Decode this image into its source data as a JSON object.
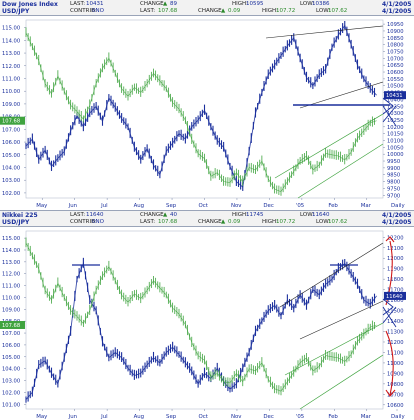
{
  "chart_data": [
    {
      "type": "line",
      "name_ticker": "Dow Jones Index",
      "pair_ticker": "USD/JPY",
      "header": {
        "last_label": "LAST:",
        "last": "10431",
        "change_label": "CHANGE:",
        "change": "89",
        "high_label": "HIGH:",
        "high": "10595",
        "low_label": "LOW:",
        "low": "10386",
        "date": "4/1/2005",
        "contrib_label": "CONTRIB:",
        "contrib": "0NO",
        "last2_label": "LAST:",
        "last2": "107.68",
        "change2_label": "CHANGE:",
        "change2": "0.09",
        "high2_label": "HIGH:",
        "high2": "107.72",
        "low2_label": "LOW:",
        "low2": "107.62",
        "date2": "4/1/2005"
      },
      "left_axis": [
        115.0,
        114.0,
        113.0,
        112.0,
        111.0,
        110.0,
        109.0,
        108.0,
        107.0,
        106.0,
        105.0,
        104.0,
        103.0,
        102.0
      ],
      "left_range": [
        101.6,
        115.6
      ],
      "right_axis": [
        10950,
        10900,
        10850,
        10800,
        10750,
        10700,
        10650,
        10600,
        10550,
        10500,
        10450,
        10400,
        10350,
        10300,
        10250,
        10200,
        10150,
        10100,
        10050,
        10000,
        9950,
        9900,
        9850,
        9800,
        9750,
        9700
      ],
      "right_range": [
        9680,
        10980
      ],
      "x_labels": [
        "May",
        "Jun",
        "Jul",
        "Aug",
        "Sep",
        "Oct",
        "Nov",
        "Dec",
        "'05",
        "Feb",
        "Mar",
        "Daily"
      ],
      "price_marker_left": "107.68",
      "price_marker_right": "10431",
      "series": [
        {
          "name": "Dow Jones Index",
          "color": "#1a2f9c",
          "axis": "right",
          "points": [
            [
              0,
              10060
            ],
            [
              3,
              10110
            ],
            [
              6,
              9960
            ],
            [
              9,
              10030
            ],
            [
              12,
              9910
            ],
            [
              15,
              9970
            ],
            [
              18,
              10020
            ],
            [
              21,
              10170
            ],
            [
              24,
              10280
            ],
            [
              27,
              10200
            ],
            [
              30,
              10300
            ],
            [
              33,
              10350
            ],
            [
              36,
              10240
            ],
            [
              39,
              10410
            ],
            [
              42,
              10340
            ],
            [
              45,
              10260
            ],
            [
              48,
              10200
            ],
            [
              51,
              10050
            ],
            [
              54,
              9960
            ],
            [
              57,
              10040
            ],
            [
              60,
              9920
            ],
            [
              63,
              9850
            ],
            [
              66,
              10020
            ],
            [
              69,
              10080
            ],
            [
              72,
              10150
            ],
            [
              75,
              10110
            ],
            [
              78,
              10200
            ],
            [
              81,
              10250
            ],
            [
              84,
              10320
            ],
            [
              87,
              10200
            ],
            [
              90,
              10100
            ],
            [
              93,
              10050
            ],
            [
              96,
              9910
            ],
            [
              99,
              9800
            ],
            [
              102,
              9760
            ],
            [
              105,
              10020
            ],
            [
              108,
              10300
            ],
            [
              111,
              10450
            ],
            [
              114,
              10580
            ],
            [
              117,
              10650
            ],
            [
              120,
              10720
            ],
            [
              123,
              10790
            ],
            [
              126,
              10850
            ],
            [
              129,
              10700
            ],
            [
              132,
              10560
            ],
            [
              135,
              10500
            ],
            [
              138,
              10580
            ],
            [
              141,
              10620
            ],
            [
              144,
              10780
            ],
            [
              147,
              10870
            ],
            [
              150,
              10940
            ],
            [
              153,
              10800
            ],
            [
              156,
              10650
            ],
            [
              159,
              10550
            ],
            [
              162,
              10480
            ],
            [
              165,
              10431
            ]
          ]
        },
        {
          "name": "USD/JPY",
          "color": "#3fa33f",
          "axis": "left",
          "points": [
            [
              0,
              114.6
            ],
            [
              3,
              113.5
            ],
            [
              6,
              112.4
            ],
            [
              9,
              110.6
            ],
            [
              12,
              109.8
            ],
            [
              15,
              111.2
            ],
            [
              18,
              110.0
            ],
            [
              21,
              108.9
            ],
            [
              24,
              108.4
            ],
            [
              27,
              107.8
            ],
            [
              30,
              108.9
            ],
            [
              33,
              110.6
            ],
            [
              36,
              111.8
            ],
            [
              39,
              112.6
            ],
            [
              42,
              111.4
            ],
            [
              45,
              110.2
            ],
            [
              48,
              109.6
            ],
            [
              51,
              110.3
            ],
            [
              54,
              109.9
            ],
            [
              57,
              110.6
            ],
            [
              60,
              111.4
            ],
            [
              63,
              110.8
            ],
            [
              66,
              110.2
            ],
            [
              69,
              109.1
            ],
            [
              72,
              108.6
            ],
            [
              75,
              107.7
            ],
            [
              78,
              106.2
            ],
            [
              81,
              105.1
            ],
            [
              84,
              104.7
            ],
            [
              87,
              103.3
            ],
            [
              90,
              103.6
            ],
            [
              93,
              102.9
            ],
            [
              96,
              102.8
            ],
            [
              99,
              103.6
            ],
            [
              102,
              102.9
            ],
            [
              105,
              104.0
            ],
            [
              108,
              103.8
            ],
            [
              111,
              104.5
            ],
            [
              114,
              103.1
            ],
            [
              117,
              102.3
            ],
            [
              120,
              102.1
            ],
            [
              123,
              102.9
            ],
            [
              126,
              103.7
            ],
            [
              129,
              104.5
            ],
            [
              132,
              104.9
            ],
            [
              135,
              103.8
            ],
            [
              138,
              104.2
            ],
            [
              141,
              105.1
            ],
            [
              144,
              105.0
            ],
            [
              147,
              104.9
            ],
            [
              150,
              104.6
            ],
            [
              153,
              105.2
            ],
            [
              156,
              106.3
            ],
            [
              159,
              106.9
            ],
            [
              162,
              107.5
            ],
            [
              165,
              107.68
            ]
          ]
        }
      ]
    },
    {
      "type": "line",
      "name_ticker": "Nikkei 225",
      "pair_ticker": "USD/JPY",
      "header": {
        "last_label": "LAST:",
        "last": "11640",
        "change_label": "CHANGE:",
        "change": "40",
        "high_label": "HIGH:",
        "high": "11745",
        "low_label": "LOW:",
        "low": "11640",
        "date": "4/1/2005",
        "contrib_label": "CONTRIB:",
        "contrib": "0NO",
        "last2_label": "LAST:",
        "last2": "107.68",
        "change2_label": "CHANGE:",
        "change2": "0.09",
        "high2_label": "HIGH:",
        "high2": "107.72",
        "low2_label": "LOW:",
        "low2": "107.62",
        "date2": "4/1/2005"
      },
      "left_axis": [
        115.0,
        114.0,
        113.0,
        112.0,
        111.0,
        110.0,
        109.0,
        108.0,
        107.0,
        106.0,
        105.0,
        104.0,
        103.0,
        102.0,
        101.0
      ],
      "left_range": [
        100.6,
        115.6
      ],
      "right_axis": [
        12200,
        12100,
        12000,
        11900,
        11800,
        11700,
        11600,
        11500,
        11400,
        11300,
        11200,
        11100,
        11000,
        10900,
        10800,
        10700,
        10600
      ],
      "right_range": [
        10560,
        12260
      ],
      "x_labels": [
        "May",
        "Jun",
        "Jul",
        "Aug",
        "Sep",
        "Oct",
        "Nov",
        "Dec",
        "'05",
        "Feb",
        "Mar",
        "Daily"
      ],
      "price_marker_left": "107.68",
      "price_marker_right": "11640",
      "series": [
        {
          "name": "Nikkei 225",
          "color": "#1a2f9c",
          "axis": "right",
          "points": [
            [
              0,
              10650
            ],
            [
              3,
              10720
            ],
            [
              6,
              10980
            ],
            [
              9,
              11020
            ],
            [
              12,
              10900
            ],
            [
              15,
              10800
            ],
            [
              18,
              11050
            ],
            [
              21,
              11300
            ],
            [
              24,
              11800
            ],
            [
              27,
              11950
            ],
            [
              30,
              11600
            ],
            [
              33,
              11500
            ],
            [
              36,
              11200
            ],
            [
              39,
              11050
            ],
            [
              42,
              11100
            ],
            [
              45,
              11050
            ],
            [
              48,
              10950
            ],
            [
              51,
              10880
            ],
            [
              54,
              10900
            ],
            [
              57,
              10980
            ],
            [
              60,
              11050
            ],
            [
              63,
              11000
            ],
            [
              66,
              11100
            ],
            [
              69,
              11150
            ],
            [
              72,
              11080
            ],
            [
              75,
              11000
            ],
            [
              78,
              10920
            ],
            [
              81,
              10800
            ],
            [
              84,
              10900
            ],
            [
              87,
              10850
            ],
            [
              90,
              10950
            ],
            [
              93,
              10820
            ],
            [
              96,
              10750
            ],
            [
              99,
              10800
            ],
            [
              102,
              10950
            ],
            [
              105,
              11100
            ],
            [
              108,
              11300
            ],
            [
              111,
              11400
            ],
            [
              114,
              11500
            ],
            [
              117,
              11550
            ],
            [
              120,
              11450
            ],
            [
              123,
              11600
            ],
            [
              126,
              11520
            ],
            [
              129,
              11650
            ],
            [
              132,
              11550
            ],
            [
              135,
              11700
            ],
            [
              138,
              11650
            ],
            [
              141,
              11750
            ],
            [
              144,
              11800
            ],
            [
              147,
              11900
            ],
            [
              150,
              11950
            ],
            [
              153,
              11850
            ],
            [
              156,
              11750
            ],
            [
              159,
              11600
            ],
            [
              162,
              11560
            ],
            [
              165,
              11640
            ]
          ]
        },
        {
          "name": "USD/JPY",
          "color": "#3fa33f",
          "axis": "left",
          "points": [
            [
              0,
              114.6
            ],
            [
              3,
              113.5
            ],
            [
              6,
              112.4
            ],
            [
              9,
              110.6
            ],
            [
              12,
              109.8
            ],
            [
              15,
              111.2
            ],
            [
              18,
              110.0
            ],
            [
              21,
              108.9
            ],
            [
              24,
              108.4
            ],
            [
              27,
              107.8
            ],
            [
              30,
              108.9
            ],
            [
              33,
              110.6
            ],
            [
              36,
              111.8
            ],
            [
              39,
              112.6
            ],
            [
              42,
              111.4
            ],
            [
              45,
              110.2
            ],
            [
              48,
              109.6
            ],
            [
              51,
              110.3
            ],
            [
              54,
              109.9
            ],
            [
              57,
              110.6
            ],
            [
              60,
              111.4
            ],
            [
              63,
              110.8
            ],
            [
              66,
              110.2
            ],
            [
              69,
              109.1
            ],
            [
              72,
              108.6
            ],
            [
              75,
              107.7
            ],
            [
              78,
              106.2
            ],
            [
              81,
              105.1
            ],
            [
              84,
              104.7
            ],
            [
              87,
              103.3
            ],
            [
              90,
              103.6
            ],
            [
              93,
              102.9
            ],
            [
              96,
              102.8
            ],
            [
              99,
              103.6
            ],
            [
              102,
              102.9
            ],
            [
              105,
              104.0
            ],
            [
              108,
              103.8
            ],
            [
              111,
              104.5
            ],
            [
              114,
              103.1
            ],
            [
              117,
              102.3
            ],
            [
              120,
              102.1
            ],
            [
              123,
              102.9
            ],
            [
              126,
              103.7
            ],
            [
              129,
              104.5
            ],
            [
              132,
              104.9
            ],
            [
              135,
              103.8
            ],
            [
              138,
              104.2
            ],
            [
              141,
              105.1
            ],
            [
              144,
              105.0
            ],
            [
              147,
              104.9
            ],
            [
              150,
              104.6
            ],
            [
              153,
              105.2
            ],
            [
              156,
              106.3
            ],
            [
              159,
              106.9
            ],
            [
              162,
              107.5
            ],
            [
              165,
              107.68
            ]
          ]
        }
      ]
    }
  ],
  "colors": {
    "stock": "#1a2f9c",
    "fx": "#3fa33f",
    "channel_stock": "#222222",
    "channel_fx": "#3fa33f",
    "arrow": "#d01818",
    "header_bg": "#f2f2f2",
    "axis_text": "#1a2f9c"
  }
}
